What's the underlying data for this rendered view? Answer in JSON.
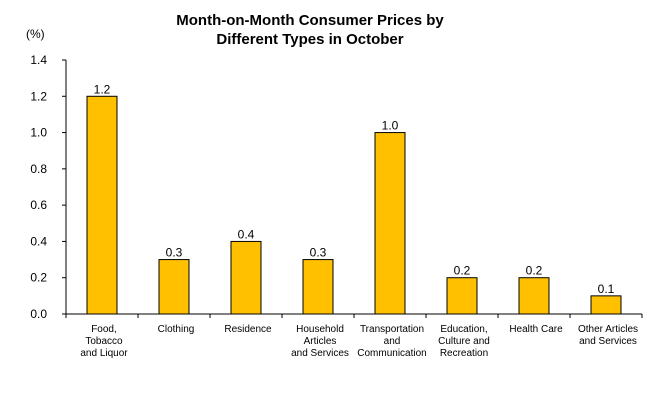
{
  "chart_data": {
    "type": "bar",
    "title": [
      "Month-on-Month Consumer Prices by",
      "Different Types in October"
    ],
    "ylabel": "(%)",
    "xlabel": "",
    "ylim": [
      0,
      1.4
    ],
    "yticks": [
      "0.0",
      "0.2",
      "0.4",
      "0.6",
      "0.8",
      "1.0",
      "1.2",
      "1.4"
    ],
    "categories": [
      [
        "Food,",
        "Tobacco",
        "and Liquor"
      ],
      [
        "Clothing"
      ],
      [
        "Residence"
      ],
      [
        "Household",
        "Articles",
        "and Services"
      ],
      [
        "Transportation",
        "and",
        "Communication"
      ],
      [
        "Education,",
        "Culture and",
        "Recreation"
      ],
      [
        "Health Care"
      ],
      [
        "Other Articles",
        "and Services"
      ]
    ],
    "values": [
      1.2,
      0.3,
      0.4,
      0.3,
      1.0,
      0.2,
      0.2,
      0.1
    ],
    "value_labels": [
      "1.2",
      "0.3",
      "0.4",
      "0.3",
      "1.0",
      "0.2",
      "0.2",
      "0.1"
    ],
    "bar_color": "#FFC000",
    "bar_edge_color": "#000000",
    "grid": false,
    "legend": "none"
  }
}
